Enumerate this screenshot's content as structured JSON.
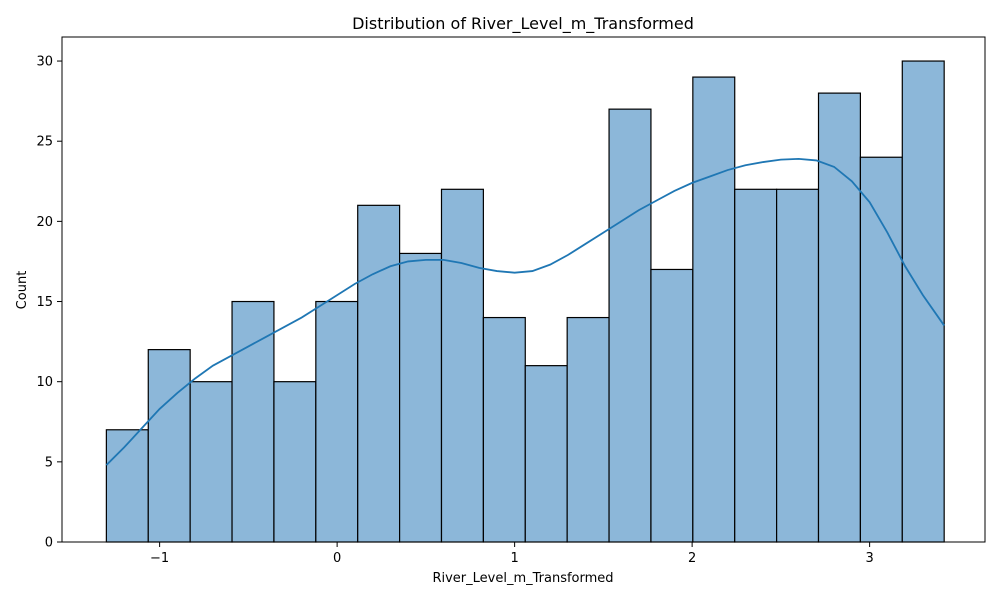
{
  "chart_data": {
    "type": "bar",
    "title": "Distribution of River_Level_m_Transformed",
    "xlabel": "River_Level_m_Transformed",
    "ylabel": "Count",
    "xlim": [
      -1.55,
      3.65
    ],
    "ylim": [
      0,
      31.5
    ],
    "x_ticks": [
      {
        "value": -1,
        "label": "−1"
      },
      {
        "value": 0,
        "label": "0"
      },
      {
        "value": 1,
        "label": "1"
      },
      {
        "value": 2,
        "label": "2"
      },
      {
        "value": 3,
        "label": "3"
      }
    ],
    "y_ticks": [
      {
        "value": 0,
        "label": "0"
      },
      {
        "value": 5,
        "label": "5"
      },
      {
        "value": 10,
        "label": "10"
      },
      {
        "value": 15,
        "label": "15"
      },
      {
        "value": 20,
        "label": "20"
      },
      {
        "value": 25,
        "label": "25"
      },
      {
        "value": 30,
        "label": "30"
      }
    ],
    "bin_edges": [
      -1.3,
      -1.064,
      -0.828,
      -0.592,
      -0.356,
      -0.12,
      0.116,
      0.352,
      0.588,
      0.824,
      1.06,
      1.296,
      1.532,
      1.768,
      2.004,
      2.24,
      2.476,
      2.712,
      2.948,
      3.184,
      3.42
    ],
    "values": [
      7,
      12,
      10,
      15,
      10,
      15,
      21,
      18,
      22,
      14,
      11,
      14,
      27,
      17,
      29,
      22,
      22,
      28,
      24,
      30
    ],
    "kde": {
      "x": [
        -1.3,
        -1.2,
        -1.1,
        -1.0,
        -0.9,
        -0.8,
        -0.7,
        -0.6,
        -0.5,
        -0.4,
        -0.3,
        -0.2,
        -0.1,
        0.0,
        0.1,
        0.2,
        0.3,
        0.4,
        0.5,
        0.6,
        0.7,
        0.8,
        0.9,
        1.0,
        1.1,
        1.2,
        1.3,
        1.4,
        1.5,
        1.6,
        1.7,
        1.8,
        1.9,
        2.0,
        2.1,
        2.2,
        2.3,
        2.4,
        2.5,
        2.6,
        2.7,
        2.8,
        2.9,
        3.0,
        3.1,
        3.2,
        3.3,
        3.42
      ],
      "y": [
        4.8,
        5.9,
        7.1,
        8.3,
        9.3,
        10.2,
        11.0,
        11.6,
        12.2,
        12.8,
        13.4,
        14.0,
        14.7,
        15.4,
        16.1,
        16.7,
        17.2,
        17.5,
        17.6,
        17.6,
        17.4,
        17.1,
        16.9,
        16.8,
        16.9,
        17.3,
        17.9,
        18.6,
        19.3,
        20.0,
        20.7,
        21.3,
        21.9,
        22.4,
        22.8,
        23.2,
        23.5,
        23.7,
        23.85,
        23.9,
        23.8,
        23.4,
        22.5,
        21.2,
        19.3,
        17.2,
        15.4,
        13.5
      ]
    },
    "colors": {
      "bar_fill": "#8cb7d9",
      "bar_edge": "#000000",
      "kde_line": "#1f77b4"
    },
    "grid": false,
    "legend": "none"
  }
}
